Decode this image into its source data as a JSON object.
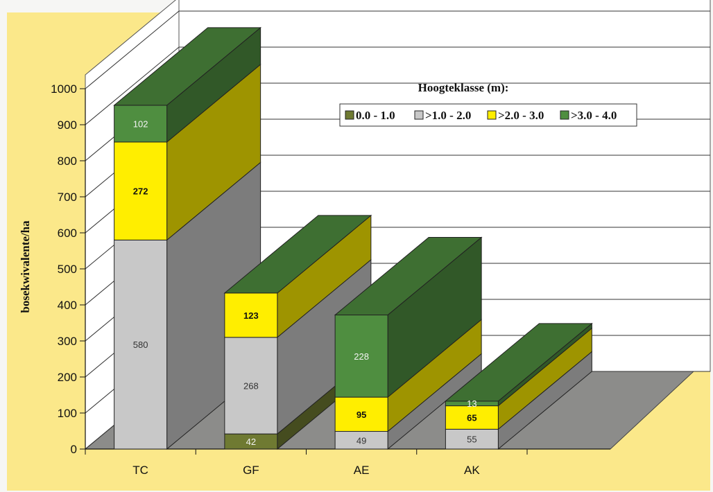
{
  "colors": {
    "background": "#fbe88a",
    "wall": "#ffffff",
    "floor": "#8c8c8a",
    "series": [
      "#6f7a32",
      "#c8c8c8",
      "#ffee00",
      "#4f8e40"
    ]
  },
  "chart_data": {
    "type": "bar",
    "stacked": true,
    "three_d": true,
    "title": "",
    "xlabel": "",
    "ylabel": "bosekwivalente/ha",
    "ylim": [
      0,
      1000
    ],
    "yticks": [
      0,
      100,
      200,
      300,
      400,
      500,
      600,
      700,
      800,
      900,
      1000
    ],
    "categories": [
      "TC",
      "GF",
      "AE",
      "AK"
    ],
    "legend": {
      "title": "Hoogteklasse (m):",
      "position": "top-right"
    },
    "series": [
      {
        "name": "0.0 - 1.0",
        "values": [
          0,
          42,
          0,
          0
        ],
        "labels": [
          "",
          "42",
          "",
          ""
        ]
      },
      {
        "name": ">1.0 - 2.0",
        "values": [
          580,
          268,
          49,
          55
        ],
        "labels": [
          "580",
          "268",
          "49",
          "55"
        ]
      },
      {
        "name": ">2.0 - 3.0",
        "values": [
          272,
          123,
          95,
          65
        ],
        "labels": [
          "272",
          "123",
          "95",
          "65"
        ]
      },
      {
        "name": ">3.0 - 4.0",
        "values": [
          102,
          0,
          228,
          13
        ],
        "labels": [
          "102",
          "",
          "228",
          "13"
        ]
      }
    ]
  }
}
